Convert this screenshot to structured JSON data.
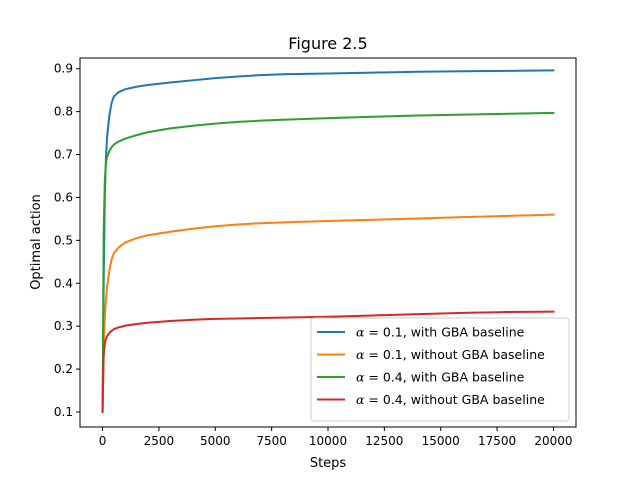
{
  "chart_data": {
    "type": "line",
    "title": "Figure 2.5",
    "xlabel": "Steps",
    "ylabel": "Optimal action",
    "xlim": [
      -1000,
      21000
    ],
    "ylim": [
      0.065,
      0.925
    ],
    "xticks": [
      0,
      2500,
      5000,
      7500,
      10000,
      12500,
      15000,
      17500,
      20000
    ],
    "yticks": [
      0.1,
      0.2,
      0.3,
      0.4,
      0.5,
      0.6,
      0.7,
      0.8,
      0.9
    ],
    "grid": false,
    "legend_position": "lower right",
    "series": [
      {
        "name": "α = 0.1, with GBA baseline",
        "alpha_symbol": "α",
        "label_rest": " = 0.1, with GBA baseline",
        "color": "#1f77b4",
        "x": [
          0,
          25,
          50,
          100,
          150,
          200,
          300,
          400,
          500,
          700,
          1000,
          1500,
          2000,
          3000,
          4000,
          5000,
          6000,
          7000,
          8000,
          10000,
          12000,
          14000,
          16000,
          18000,
          20000
        ],
        "y": [
          0.1,
          0.2,
          0.4,
          0.6,
          0.69,
          0.74,
          0.79,
          0.82,
          0.835,
          0.845,
          0.852,
          0.858,
          0.862,
          0.868,
          0.873,
          0.878,
          0.882,
          0.885,
          0.887,
          0.889,
          0.891,
          0.893,
          0.894,
          0.895,
          0.896
        ]
      },
      {
        "name": "α = 0.1, without GBA baseline",
        "alpha_symbol": "α",
        "label_rest": " = 0.1, without GBA baseline",
        "color": "#ff7f0e",
        "x": [
          0,
          25,
          50,
          100,
          150,
          200,
          300,
          400,
          500,
          700,
          1000,
          1500,
          2000,
          3000,
          4000,
          5000,
          6000,
          7000,
          8000,
          10000,
          12000,
          14000,
          16000,
          18000,
          20000
        ],
        "y": [
          0.1,
          0.18,
          0.26,
          0.32,
          0.36,
          0.39,
          0.43,
          0.455,
          0.47,
          0.483,
          0.495,
          0.505,
          0.512,
          0.52,
          0.527,
          0.533,
          0.537,
          0.54,
          0.542,
          0.545,
          0.548,
          0.551,
          0.554,
          0.557,
          0.56
        ]
      },
      {
        "name": "α = 0.4, with GBA baseline",
        "alpha_symbol": "α",
        "label_rest": " = 0.4, with GBA baseline",
        "color": "#2ca02c",
        "x": [
          0,
          25,
          50,
          100,
          150,
          200,
          300,
          400,
          500,
          700,
          1000,
          1500,
          2000,
          3000,
          4000,
          5000,
          6000,
          7000,
          8000,
          10000,
          12000,
          14000,
          16000,
          18000,
          20000
        ],
        "y": [
          0.1,
          0.3,
          0.52,
          0.64,
          0.68,
          0.695,
          0.708,
          0.717,
          0.723,
          0.73,
          0.737,
          0.745,
          0.752,
          0.761,
          0.767,
          0.772,
          0.776,
          0.779,
          0.781,
          0.785,
          0.788,
          0.791,
          0.793,
          0.795,
          0.797
        ]
      },
      {
        "name": "α = 0.4, without GBA baseline",
        "alpha_symbol": "α",
        "label_rest": " = 0.4, without GBA baseline",
        "color": "#d62728",
        "x": [
          0,
          25,
          50,
          100,
          150,
          200,
          300,
          400,
          500,
          700,
          1000,
          1500,
          2000,
          3000,
          4000,
          5000,
          6000,
          7000,
          8000,
          10000,
          12000,
          14000,
          16000,
          18000,
          20000
        ],
        "y": [
          0.1,
          0.17,
          0.23,
          0.26,
          0.27,
          0.277,
          0.284,
          0.289,
          0.293,
          0.297,
          0.301,
          0.305,
          0.308,
          0.312,
          0.315,
          0.317,
          0.318,
          0.319,
          0.32,
          0.322,
          0.325,
          0.328,
          0.331,
          0.333,
          0.334
        ]
      }
    ]
  }
}
